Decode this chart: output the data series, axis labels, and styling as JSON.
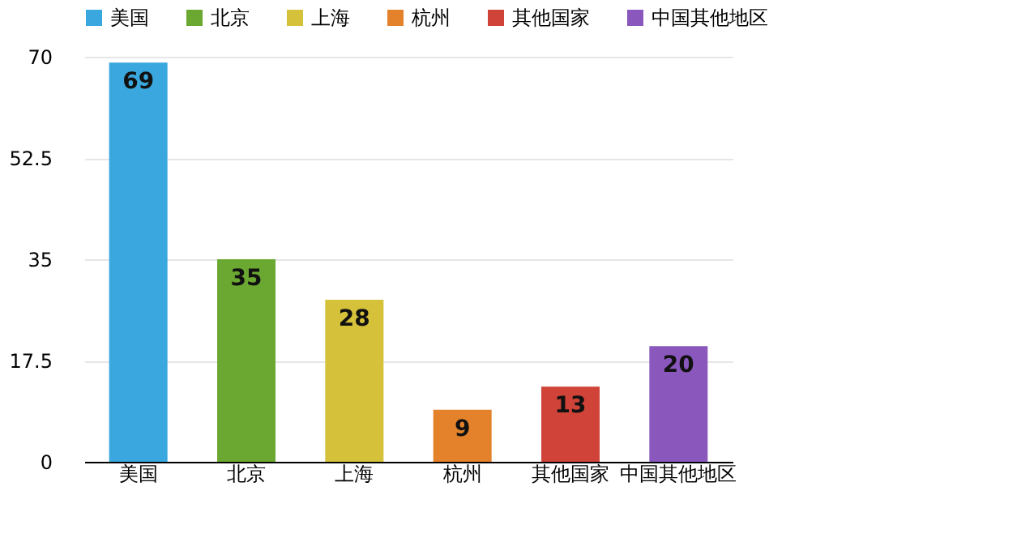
{
  "chart_data": {
    "type": "bar",
    "categories": [
      "美国",
      "北京",
      "上海",
      "杭州",
      "其他国家",
      "中国其他地区"
    ],
    "series": [
      {
        "name": "美国",
        "color": "#3aa8de",
        "values": [
          69,
          null,
          null,
          null,
          null,
          null
        ]
      },
      {
        "name": "北京",
        "color": "#6aa832",
        "values": [
          null,
          35,
          null,
          null,
          null,
          null
        ]
      },
      {
        "name": "上海",
        "color": "#d6c13a",
        "values": [
          null,
          null,
          28,
          null,
          null,
          null
        ]
      },
      {
        "name": "杭州",
        "color": "#e4822c",
        "values": [
          null,
          null,
          null,
          9,
          null,
          null
        ]
      },
      {
        "name": "其他国家",
        "color": "#cf4339",
        "values": [
          null,
          null,
          null,
          null,
          13,
          null
        ]
      },
      {
        "name": "中国其他地区",
        "color": "#8a58bd",
        "values": [
          null,
          null,
          null,
          null,
          null,
          20
        ]
      }
    ],
    "ylim": [
      0,
      70
    ],
    "yticks": [
      0,
      {
        "value": 17.5,
        "label": "17.5"
      },
      35,
      {
        "value": 52.5,
        "label": "52.5"
      },
      70
    ],
    "grid": "y",
    "legend": "top",
    "data_labels": true
  }
}
